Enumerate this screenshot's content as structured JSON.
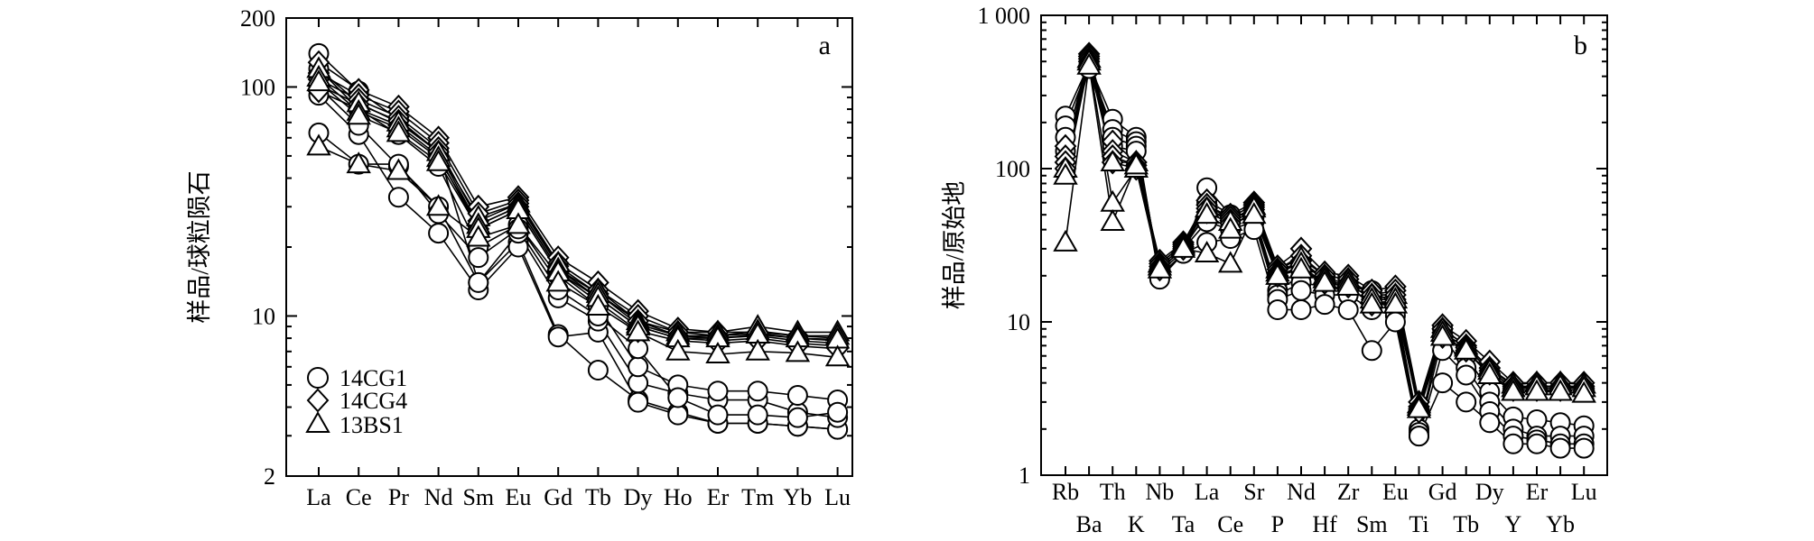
{
  "chart_data": [
    {
      "type": "line",
      "panel_tag": "a",
      "ylabel": "样品/球粒陨石",
      "yscale": "log",
      "ylim": [
        2,
        200
      ],
      "y_ticks": [
        {
          "value": 2,
          "label": "2"
        },
        {
          "value": 10,
          "label": "10"
        },
        {
          "value": 100,
          "label": "100"
        },
        {
          "value": 200,
          "label": "200"
        }
      ],
      "categories": [
        "La",
        "Ce",
        "Pr",
        "Nd",
        "Sm",
        "Eu",
        "Gd",
        "Tb",
        "Dy",
        "Ho",
        "Er",
        "Tm",
        "Yb",
        "Lu"
      ],
      "legend": {
        "position": "bottom-left",
        "entries": [
          {
            "label": "14CG1",
            "marker": "circle"
          },
          {
            "label": "14CG4",
            "marker": "diamond"
          },
          {
            "label": "13BS1",
            "marker": "triangle"
          }
        ]
      },
      "series": [
        {
          "group": "14CG1",
          "marker": "circle",
          "values": [
            140,
            96,
            72,
            52,
            14,
            21,
            8.3,
            5.8,
            4.3,
            3.8,
            3.4,
            3.4,
            3.3,
            3.2
          ]
        },
        {
          "group": "14CG1",
          "marker": "circle",
          "values": [
            92,
            62,
            33,
            23,
            13,
            20,
            8.1,
            8.5,
            4.2,
            3.7,
            3.4,
            3.4,
            3.3,
            3.2
          ]
        },
        {
          "group": "14CG1",
          "marker": "circle",
          "values": [
            100,
            68,
            45,
            30,
            14,
            23,
            12,
            9.5,
            5.1,
            4.6,
            4.3,
            4.3,
            3.8,
            3.6
          ]
        },
        {
          "group": "14CG1",
          "marker": "circle",
          "values": [
            120,
            80,
            62,
            45,
            20,
            25,
            15,
            11,
            6,
            5,
            4.7,
            4.7,
            4.5,
            4.3
          ]
        },
        {
          "group": "14CG1",
          "marker": "circle",
          "values": [
            63,
            46,
            46,
            28,
            18,
            24,
            13,
            10,
            7.2,
            4.4,
            3.7,
            3.7,
            3.6,
            3.8
          ]
        },
        {
          "group": "14CG4",
          "marker": "diamond",
          "values": [
            128,
            97,
            82,
            60,
            30,
            33,
            18,
            14,
            10.5,
            8.8,
            8.5,
            8.5,
            8.2,
            8
          ]
        },
        {
          "group": "14CG4",
          "marker": "diamond",
          "values": [
            115,
            92,
            78,
            57,
            28,
            32,
            17,
            13,
            10,
            8.5,
            8.2,
            8.4,
            8,
            7.8
          ]
        },
        {
          "group": "14CG4",
          "marker": "diamond",
          "values": [
            108,
            88,
            74,
            54,
            26,
            31,
            16.5,
            12.5,
            9.5,
            8.2,
            8,
            8.2,
            7.8,
            7.6
          ]
        },
        {
          "group": "14CG4",
          "marker": "diamond",
          "values": [
            102,
            84,
            71,
            52,
            25,
            30,
            16,
            12,
            9,
            8,
            7.8,
            8,
            7.6,
            7.4
          ]
        },
        {
          "group": "14CG4",
          "marker": "diamond",
          "values": [
            96,
            80,
            68,
            50,
            24,
            29,
            15.5,
            11.5,
            8.6,
            7.8,
            7.6,
            7.8,
            7.4,
            7.2
          ]
        },
        {
          "group": "13BS1",
          "marker": "triangle",
          "values": [
            120,
            85,
            70,
            52,
            27,
            31,
            17,
            13,
            9.5,
            8.5,
            8.5,
            9,
            8.5,
            8.5
          ]
        },
        {
          "group": "13BS1",
          "marker": "triangle",
          "values": [
            110,
            78,
            66,
            49,
            25,
            30,
            16,
            12.5,
            9.2,
            8.2,
            8.2,
            8.6,
            8.2,
            8.2
          ]
        },
        {
          "group": "13BS1",
          "marker": "triangle",
          "values": [
            105,
            75,
            63,
            47,
            24,
            29,
            15.5,
            12,
            9,
            8,
            8,
            8.3,
            8,
            7.9
          ]
        },
        {
          "group": "13BS1",
          "marker": "triangle",
          "values": [
            55,
            46,
            43,
            30,
            22,
            25,
            14,
            11,
            8.5,
            7,
            6.8,
            7,
            6.9,
            6.6
          ]
        }
      ]
    },
    {
      "type": "line",
      "panel_tag": "b",
      "ylabel": "样品/原始地",
      "yscale": "log",
      "ylim": [
        1,
        1000
      ],
      "y_ticks": [
        {
          "value": 1,
          "label": "1"
        },
        {
          "value": 10,
          "label": "10"
        },
        {
          "value": 100,
          "label": "100"
        },
        {
          "value": 1000,
          "label": "1 000"
        }
      ],
      "categories": [
        "Rb",
        "Ba",
        "Th",
        "K",
        "Nb",
        "Ta",
        "La",
        "Ce",
        "Sr",
        "P",
        "Nd",
        "Hf",
        "Zr",
        "Sm",
        "Eu",
        "Ti",
        "Gd",
        "Tb",
        "Dy",
        "Y",
        "Er",
        "Yb",
        "Lu"
      ],
      "series": [
        {
          "group": "14CG1",
          "marker": "circle",
          "values": [
            220,
            480,
            210,
            160,
            20,
            28,
            75,
            50,
            50,
            16,
            20,
            19,
            17,
            16,
            13,
            2,
            9,
            6,
            3.5,
            2.4,
            2.3,
            2.2,
            2.1
          ]
        },
        {
          "group": "14CG1",
          "marker": "circle",
          "values": [
            190,
            470,
            180,
            150,
            21,
            29,
            60,
            45,
            48,
            15,
            18,
            17,
            16,
            14,
            12,
            1.9,
            8,
            5,
            3,
            2,
            1.8,
            1.8,
            1.8
          ]
        },
        {
          "group": "14CG1",
          "marker": "circle",
          "values": [
            160,
            460,
            160,
            140,
            22,
            30,
            45,
            40,
            45,
            14,
            16,
            15,
            15,
            12,
            11,
            1.8,
            6.5,
            4.5,
            2.6,
            1.8,
            1.7,
            1.6,
            1.6
          ]
        },
        {
          "group": "14CG1",
          "marker": "circle",
          "values": [
            130,
            450,
            140,
            130,
            19,
            28,
            33,
            35,
            40,
            12,
            12,
            13,
            12,
            6.5,
            10,
            1.8,
            4,
            3,
            2.2,
            1.6,
            1.6,
            1.5,
            1.5
          ]
        },
        {
          "group": "14CG4",
          "marker": "diamond",
          "values": [
            140,
            560,
            150,
            110,
            25,
            33,
            62,
            50,
            60,
            23,
            30,
            21,
            20,
            16,
            17,
            3,
            9.5,
            7.5,
            5.5,
            4,
            4,
            4,
            4
          ]
        },
        {
          "group": "14CG4",
          "marker": "diamond",
          "values": [
            120,
            540,
            130,
            110,
            24,
            32,
            58,
            48,
            58,
            22,
            27,
            20,
            19,
            15,
            16,
            2.8,
            9,
            7,
            5,
            3.8,
            3.8,
            3.8,
            3.8
          ]
        },
        {
          "group": "14CG4",
          "marker": "diamond",
          "values": [
            110,
            520,
            120,
            105,
            23,
            31,
            55,
            46,
            56,
            21,
            25,
            19,
            18,
            14,
            15,
            2.7,
            8.5,
            6.8,
            4.8,
            3.7,
            3.7,
            3.7,
            3.7
          ]
        },
        {
          "group": "14CG4",
          "marker": "diamond",
          "values": [
            100,
            500,
            110,
            100,
            22,
            30,
            52,
            44,
            54,
            20,
            23,
            18,
            17,
            13,
            14,
            2.6,
            8,
            6.5,
            4.6,
            3.6,
            3.6,
            3.6,
            3.6
          ]
        },
        {
          "group": "13BS1",
          "marker": "triangle",
          "values": [
            100,
            520,
            110,
            110,
            24,
            32,
            55,
            45,
            57,
            22,
            26,
            20,
            19,
            15,
            15,
            2.9,
            9,
            7,
            5,
            3.9,
            4,
            4,
            3.9
          ]
        },
        {
          "group": "13BS1",
          "marker": "triangle",
          "values": [
            90,
            500,
            60,
            100,
            23,
            31,
            50,
            40,
            55,
            21,
            24,
            19,
            18,
            14,
            14,
            2.8,
            8.5,
            6.8,
            4.8,
            3.7,
            3.8,
            3.8,
            3.7
          ]
        },
        {
          "group": "13BS1",
          "marker": "triangle",
          "values": [
            33,
            470,
            45,
            105,
            22,
            30,
            28,
            24,
            50,
            20,
            22,
            18,
            17,
            13,
            13,
            2.7,
            8,
            6.5,
            4.5,
            3.5,
            3.5,
            3.5,
            3.4
          ]
        }
      ]
    }
  ]
}
